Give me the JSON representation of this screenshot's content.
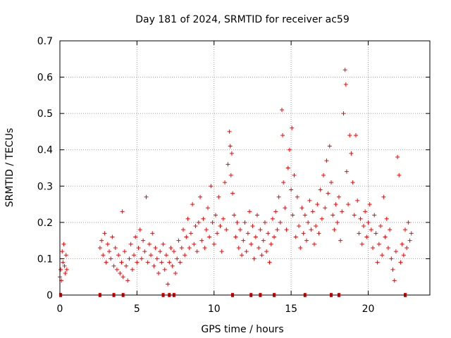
{
  "chart_data": {
    "type": "scatter",
    "title": "Day 181 of 2024, SRMTID for receiver ac59",
    "xlabel": "GPS time / hours",
    "ylabel": "SRMTID / TECUs",
    "xlim": [
      0,
      24
    ],
    "ylim": [
      0,
      0.7
    ],
    "xticks": [
      0,
      5,
      10,
      15,
      20
    ],
    "xtick_labels": [
      "0",
      "5",
      "10",
      "15",
      "20"
    ],
    "yticks": [
      0,
      0.1,
      0.2,
      0.3,
      0.4,
      0.5,
      0.6,
      0.7
    ],
    "ytick_labels": [
      "0",
      "0.1",
      "0.2",
      "0.3",
      "0.4",
      "0.5",
      "0.6",
      "0.7"
    ],
    "grid": true,
    "marker": "+",
    "color": "#ff0000",
    "series": [
      {
        "name": "SRMTID",
        "points": [
          [
            0.0,
            0.05
          ],
          [
            0.05,
            0.07
          ],
          [
            0.1,
            0.04
          ],
          [
            0.15,
            0.12
          ],
          [
            0.2,
            0.09
          ],
          [
            0.25,
            0.14
          ],
          [
            0.3,
            0.08
          ],
          [
            0.35,
            0.06
          ],
          [
            0.4,
            0.11
          ],
          [
            0.45,
            0.07
          ],
          [
            2.6,
            0.13
          ],
          [
            2.7,
            0.15
          ],
          [
            2.8,
            0.11
          ],
          [
            2.9,
            0.17
          ],
          [
            3.0,
            0.09
          ],
          [
            3.1,
            0.14
          ],
          [
            3.2,
            0.12
          ],
          [
            3.3,
            0.1
          ],
          [
            3.4,
            0.16
          ],
          [
            3.5,
            0.08
          ],
          [
            3.6,
            0.13
          ],
          [
            3.7,
            0.07
          ],
          [
            3.8,
            0.11
          ],
          [
            3.9,
            0.06
          ],
          [
            4.0,
            0.09
          ],
          [
            4.05,
            0.23
          ],
          [
            4.1,
            0.05
          ],
          [
            4.2,
            0.12
          ],
          [
            4.3,
            0.08
          ],
          [
            4.4,
            0.04
          ],
          [
            4.5,
            0.1
          ],
          [
            4.6,
            0.14
          ],
          [
            4.7,
            0.07
          ],
          [
            4.8,
            0.11
          ],
          [
            4.9,
            0.16
          ],
          [
            5.0,
            0.09
          ],
          [
            5.1,
            0.13
          ],
          [
            5.2,
            0.18
          ],
          [
            5.3,
            0.1
          ],
          [
            5.4,
            0.15
          ],
          [
            5.5,
            0.12
          ],
          [
            5.6,
            0.27
          ],
          [
            5.7,
            0.09
          ],
          [
            5.8,
            0.14
          ],
          [
            5.9,
            0.11
          ],
          [
            6.0,
            0.17
          ],
          [
            6.1,
            0.08
          ],
          [
            6.2,
            0.13
          ],
          [
            6.3,
            0.1
          ],
          [
            6.4,
            0.06
          ],
          [
            6.5,
            0.12
          ],
          [
            6.6,
            0.09
          ],
          [
            6.7,
            0.14
          ],
          [
            6.8,
            0.07
          ],
          [
            6.9,
            0.11
          ],
          [
            7.0,
            0.03
          ],
          [
            7.1,
            0.09
          ],
          [
            7.2,
            0.13
          ],
          [
            7.3,
            0.08
          ],
          [
            7.4,
            0.12
          ],
          [
            7.5,
            0.06
          ],
          [
            7.6,
            0.1
          ],
          [
            7.7,
            0.15
          ],
          [
            7.8,
            0.09
          ],
          [
            7.9,
            0.13
          ],
          [
            8.0,
            0.18
          ],
          [
            8.1,
            0.11
          ],
          [
            8.2,
            0.16
          ],
          [
            8.3,
            0.21
          ],
          [
            8.4,
            0.13
          ],
          [
            8.5,
            0.17
          ],
          [
            8.6,
            0.25
          ],
          [
            8.7,
            0.14
          ],
          [
            8.8,
            0.19
          ],
          [
            8.9,
            0.12
          ],
          [
            9.0,
            0.2
          ],
          [
            9.1,
            0.27
          ],
          [
            9.2,
            0.15
          ],
          [
            9.3,
            0.21
          ],
          [
            9.4,
            0.13
          ],
          [
            9.5,
            0.18
          ],
          [
            9.6,
            0.24
          ],
          [
            9.7,
            0.16
          ],
          [
            9.8,
            0.3
          ],
          [
            9.9,
            0.2
          ],
          [
            10.0,
            0.14
          ],
          [
            10.1,
            0.22
          ],
          [
            10.2,
            0.17
          ],
          [
            10.3,
            0.27
          ],
          [
            10.4,
            0.19
          ],
          [
            10.5,
            0.12
          ],
          [
            10.6,
            0.21
          ],
          [
            10.7,
            0.31
          ],
          [
            10.8,
            0.18
          ],
          [
            10.9,
            0.36
          ],
          [
            11.0,
            0.45
          ],
          [
            11.05,
            0.41
          ],
          [
            11.1,
            0.33
          ],
          [
            11.15,
            0.39
          ],
          [
            11.2,
            0.28
          ],
          [
            11.3,
            0.22
          ],
          [
            11.4,
            0.16
          ],
          [
            11.5,
            0.2
          ],
          [
            11.6,
            0.13
          ],
          [
            11.7,
            0.18
          ],
          [
            11.8,
            0.11
          ],
          [
            11.9,
            0.15
          ],
          [
            12.0,
            0.2
          ],
          [
            12.1,
            0.12
          ],
          [
            12.2,
            0.17
          ],
          [
            12.3,
            0.23
          ],
          [
            12.4,
            0.14
          ],
          [
            12.5,
            0.19
          ],
          [
            12.6,
            0.1
          ],
          [
            12.7,
            0.16
          ],
          [
            12.8,
            0.22
          ],
          [
            12.9,
            0.13
          ],
          [
            13.0,
            0.18
          ],
          [
            13.1,
            0.11
          ],
          [
            13.2,
            0.15
          ],
          [
            13.3,
            0.2
          ],
          [
            13.4,
            0.12
          ],
          [
            13.5,
            0.17
          ],
          [
            13.6,
            0.09
          ],
          [
            13.7,
            0.14
          ],
          [
            13.8,
            0.21
          ],
          [
            13.9,
            0.16
          ],
          [
            14.0,
            0.23
          ],
          [
            14.1,
            0.18
          ],
          [
            14.2,
            0.27
          ],
          [
            14.3,
            0.2
          ],
          [
            14.4,
            0.51
          ],
          [
            14.45,
            0.44
          ],
          [
            14.5,
            0.31
          ],
          [
            14.6,
            0.24
          ],
          [
            14.7,
            0.18
          ],
          [
            14.8,
            0.35
          ],
          [
            14.9,
            0.4
          ],
          [
            15.0,
            0.29
          ],
          [
            15.05,
            0.46
          ],
          [
            15.1,
            0.22
          ],
          [
            15.2,
            0.33
          ],
          [
            15.3,
            0.16
          ],
          [
            15.4,
            0.27
          ],
          [
            15.5,
            0.19
          ],
          [
            15.6,
            0.13
          ],
          [
            15.7,
            0.24
          ],
          [
            15.8,
            0.17
          ],
          [
            15.9,
            0.22
          ],
          [
            16.0,
            0.15
          ],
          [
            16.1,
            0.2
          ],
          [
            16.2,
            0.26
          ],
          [
            16.3,
            0.18
          ],
          [
            16.4,
            0.23
          ],
          [
            16.5,
            0.14
          ],
          [
            16.6,
            0.19
          ],
          [
            16.7,
            0.25
          ],
          [
            16.8,
            0.17
          ],
          [
            16.9,
            0.29
          ],
          [
            17.0,
            0.21
          ],
          [
            17.1,
            0.33
          ],
          [
            17.2,
            0.24
          ],
          [
            17.3,
            0.37
          ],
          [
            17.4,
            0.28
          ],
          [
            17.5,
            0.41
          ],
          [
            17.6,
            0.31
          ],
          [
            17.7,
            0.22
          ],
          [
            17.8,
            0.18
          ],
          [
            17.9,
            0.25
          ],
          [
            18.0,
            0.2
          ],
          [
            18.1,
            0.27
          ],
          [
            18.2,
            0.15
          ],
          [
            18.3,
            0.23
          ],
          [
            18.4,
            0.5
          ],
          [
            18.5,
            0.62
          ],
          [
            18.55,
            0.58
          ],
          [
            18.6,
            0.34
          ],
          [
            18.7,
            0.25
          ],
          [
            18.8,
            0.44
          ],
          [
            18.9,
            0.39
          ],
          [
            19.0,
            0.31
          ],
          [
            19.1,
            0.22
          ],
          [
            19.2,
            0.44
          ],
          [
            19.3,
            0.26
          ],
          [
            19.4,
            0.17
          ],
          [
            19.5,
            0.21
          ],
          [
            19.6,
            0.14
          ],
          [
            19.7,
            0.19
          ],
          [
            19.8,
            0.23
          ],
          [
            19.9,
            0.16
          ],
          [
            20.0,
            0.2
          ],
          [
            20.1,
            0.25
          ],
          [
            20.2,
            0.18
          ],
          [
            20.3,
            0.13
          ],
          [
            20.4,
            0.22
          ],
          [
            20.5,
            0.17
          ],
          [
            20.6,
            0.09
          ],
          [
            20.7,
            0.14
          ],
          [
            20.8,
            0.19
          ],
          [
            20.9,
            0.11
          ],
          [
            21.0,
            0.27
          ],
          [
            21.1,
            0.16
          ],
          [
            21.2,
            0.21
          ],
          [
            21.3,
            0.13
          ],
          [
            21.4,
            0.18
          ],
          [
            21.5,
            0.1
          ],
          [
            21.6,
            0.07
          ],
          [
            21.7,
            0.04
          ],
          [
            21.8,
            0.12
          ],
          [
            21.9,
            0.38
          ],
          [
            22.0,
            0.33
          ],
          [
            22.1,
            0.09
          ],
          [
            22.2,
            0.14
          ],
          [
            22.3,
            0.11
          ],
          [
            22.4,
            0.18
          ],
          [
            22.5,
            0.13
          ],
          [
            22.6,
            0.2
          ],
          [
            22.7,
            0.15
          ],
          [
            22.8,
            0.17
          ]
        ]
      }
    ],
    "zero_gap_hours": [
      0.05,
      2.6,
      3.5,
      4.1,
      6.7,
      7.1,
      7.4,
      11.2,
      12.4,
      13.0,
      13.9,
      15.9,
      17.6,
      18.1,
      22.4
    ]
  }
}
